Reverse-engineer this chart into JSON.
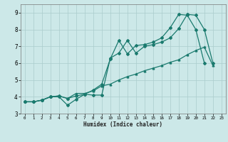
{
  "xlabel": "Humidex (Indice chaleur)",
  "bg_color": "#cce8e8",
  "grid_color": "#aacccc",
  "line_color": "#1a7a6e",
  "xlim": [
    -0.5,
    23.5
  ],
  "ylim": [
    3.0,
    9.5
  ],
  "yticks": [
    3,
    4,
    5,
    6,
    7,
    8,
    9
  ],
  "xticks": [
    0,
    1,
    2,
    3,
    4,
    5,
    6,
    7,
    8,
    9,
    10,
    11,
    12,
    13,
    14,
    15,
    16,
    17,
    18,
    19,
    20,
    21,
    22,
    23
  ],
  "line1_x": [
    0,
    1,
    2,
    3,
    4,
    5,
    6,
    7,
    8,
    9,
    10,
    11,
    12,
    13,
    14,
    15,
    16,
    17,
    18,
    19,
    20,
    21,
    22
  ],
  "line1_y": [
    3.7,
    3.7,
    3.8,
    4.0,
    4.0,
    3.5,
    3.85,
    4.15,
    4.1,
    4.1,
    6.3,
    6.6,
    7.35,
    6.6,
    7.0,
    7.1,
    7.25,
    7.5,
    8.05,
    8.9,
    8.85,
    8.0,
    6.0
  ],
  "line2_x": [
    0,
    1,
    2,
    3,
    4,
    5,
    6,
    7,
    8,
    9,
    10,
    11,
    12,
    13,
    14,
    15,
    16,
    17,
    18,
    19,
    20,
    21
  ],
  "line2_y": [
    3.7,
    3.7,
    3.8,
    4.0,
    4.05,
    3.9,
    4.05,
    4.15,
    4.4,
    4.75,
    6.25,
    7.35,
    6.55,
    7.05,
    7.1,
    7.25,
    7.5,
    8.1,
    8.9,
    8.85,
    8.0,
    6.0
  ],
  "line3_x": [
    0,
    1,
    2,
    3,
    4,
    5,
    6,
    7,
    8,
    9,
    10,
    11,
    12,
    13,
    14,
    15,
    16,
    17,
    18,
    19,
    20,
    21,
    22
  ],
  "line3_y": [
    3.7,
    3.7,
    3.8,
    4.0,
    4.05,
    3.9,
    4.2,
    4.2,
    4.35,
    4.65,
    4.75,
    5.0,
    5.2,
    5.35,
    5.55,
    5.7,
    5.85,
    6.05,
    6.2,
    6.5,
    6.75,
    6.95,
    5.85
  ]
}
